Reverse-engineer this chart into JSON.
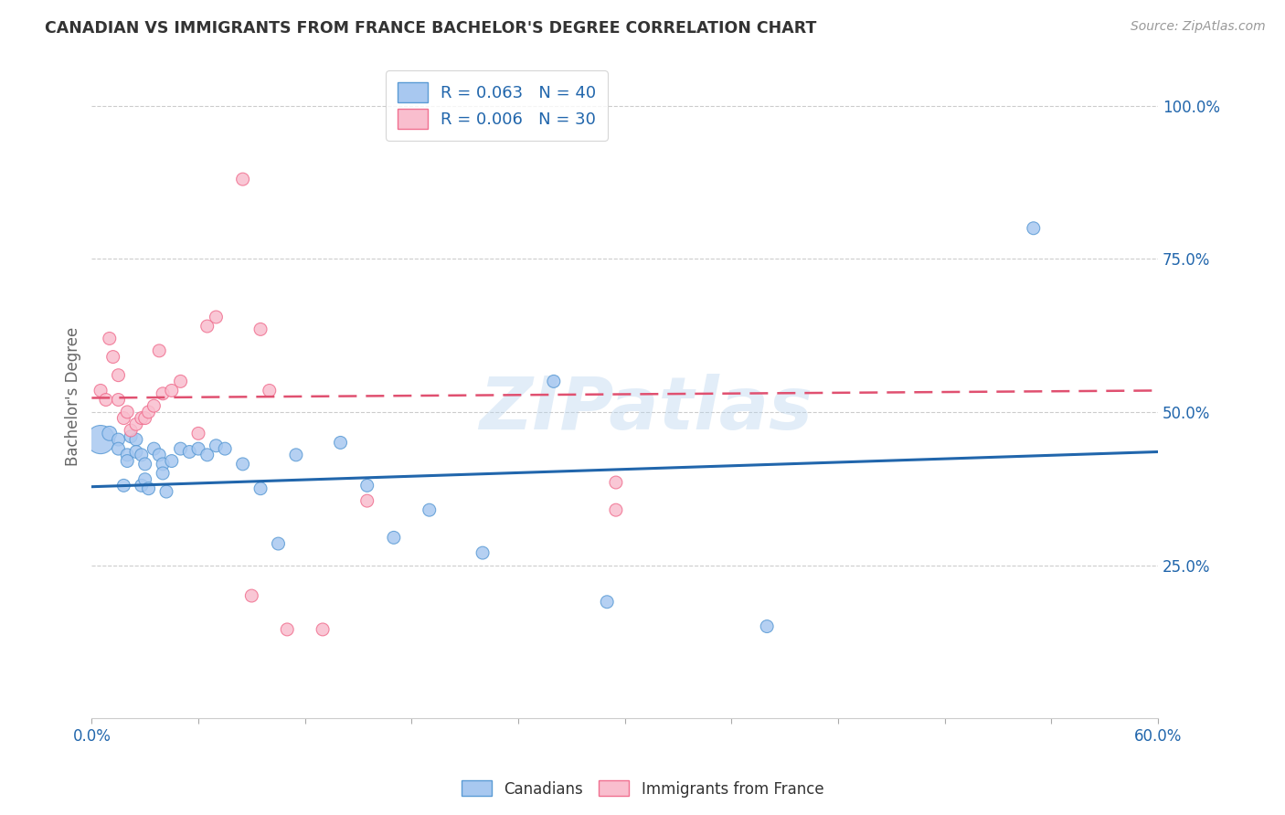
{
  "title": "CANADIAN VS IMMIGRANTS FROM FRANCE BACHELOR'S DEGREE CORRELATION CHART",
  "source": "Source: ZipAtlas.com",
  "ylabel": "Bachelor's Degree",
  "xlim": [
    0.0,
    0.6
  ],
  "ylim": [
    0.0,
    1.05
  ],
  "xticks": [
    0.0,
    0.06,
    0.12,
    0.18,
    0.24,
    0.3,
    0.36,
    0.42,
    0.48,
    0.54,
    0.6
  ],
  "xticklabels": [
    "0.0%",
    "",
    "",
    "",
    "",
    "",
    "",
    "",
    "",
    "",
    "60.0%"
  ],
  "yticks": [
    0.25,
    0.5,
    0.75,
    1.0
  ],
  "yticklabels": [
    "25.0%",
    "50.0%",
    "75.0%",
    "100.0%"
  ],
  "legend_labels": [
    "Canadians",
    "Immigrants from France"
  ],
  "legend_r": [
    "R = 0.063",
    "R = 0.006"
  ],
  "legend_n": [
    "N = 40",
    "N = 30"
  ],
  "blue_color": "#A8C8F0",
  "pink_color": "#F9BECE",
  "blue_edge_color": "#5B9BD5",
  "pink_edge_color": "#F07090",
  "blue_line_color": "#2166AC",
  "pink_line_color": "#E05070",
  "background_color": "#FFFFFF",
  "watermark": "ZIPatlas",
  "canadians_x": [
    0.005,
    0.01,
    0.015,
    0.015,
    0.018,
    0.02,
    0.02,
    0.022,
    0.025,
    0.025,
    0.028,
    0.028,
    0.03,
    0.03,
    0.032,
    0.035,
    0.038,
    0.04,
    0.04,
    0.042,
    0.045,
    0.05,
    0.055,
    0.06,
    0.065,
    0.07,
    0.075,
    0.085,
    0.095,
    0.105,
    0.115,
    0.14,
    0.155,
    0.17,
    0.19,
    0.22,
    0.26,
    0.29,
    0.38,
    0.53
  ],
  "canadians_y": [
    0.455,
    0.465,
    0.455,
    0.44,
    0.38,
    0.43,
    0.42,
    0.46,
    0.455,
    0.435,
    0.43,
    0.38,
    0.415,
    0.39,
    0.375,
    0.44,
    0.43,
    0.415,
    0.4,
    0.37,
    0.42,
    0.44,
    0.435,
    0.44,
    0.43,
    0.445,
    0.44,
    0.415,
    0.375,
    0.285,
    0.43,
    0.45,
    0.38,
    0.295,
    0.34,
    0.27,
    0.55,
    0.19,
    0.15,
    0.8
  ],
  "canadians_size": [
    500,
    130,
    100,
    100,
    100,
    100,
    100,
    100,
    100,
    100,
    100,
    100,
    100,
    100,
    100,
    100,
    100,
    100,
    100,
    100,
    100,
    100,
    100,
    100,
    100,
    100,
    100,
    100,
    100,
    100,
    100,
    100,
    100,
    100,
    100,
    100,
    100,
    100,
    100,
    100
  ],
  "france_x": [
    0.005,
    0.008,
    0.01,
    0.012,
    0.015,
    0.015,
    0.018,
    0.02,
    0.022,
    0.025,
    0.028,
    0.03,
    0.032,
    0.035,
    0.038,
    0.04,
    0.045,
    0.05,
    0.06,
    0.065,
    0.07,
    0.085,
    0.09,
    0.095,
    0.1,
    0.11,
    0.13,
    0.155,
    0.295,
    0.295
  ],
  "france_y": [
    0.535,
    0.52,
    0.62,
    0.59,
    0.56,
    0.52,
    0.49,
    0.5,
    0.47,
    0.48,
    0.49,
    0.49,
    0.5,
    0.51,
    0.6,
    0.53,
    0.535,
    0.55,
    0.465,
    0.64,
    0.655,
    0.88,
    0.2,
    0.635,
    0.535,
    0.145,
    0.145,
    0.355,
    0.34,
    0.385
  ],
  "france_size": [
    100,
    100,
    100,
    100,
    100,
    100,
    100,
    100,
    100,
    100,
    100,
    100,
    100,
    100,
    100,
    100,
    100,
    100,
    100,
    100,
    100,
    100,
    100,
    100,
    100,
    100,
    100,
    100,
    100,
    100
  ]
}
